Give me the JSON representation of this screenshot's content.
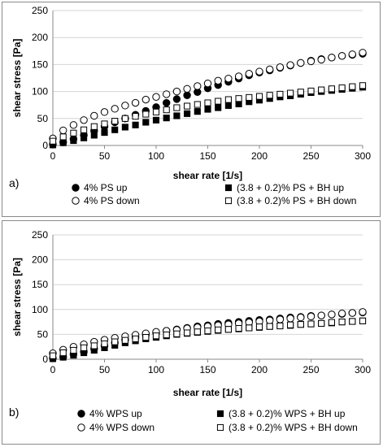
{
  "chart_data": [
    {
      "type": "scatter",
      "panel_label": "a)",
      "xlabel": "shear rate [1/s]",
      "ylabel": "shear stress [Pa]",
      "xlim": [
        0,
        300
      ],
      "ylim": [
        0,
        250
      ],
      "xticks": [
        "0",
        "50",
        "100",
        "150",
        "200",
        "250",
        "300"
      ],
      "yticks": [
        "0",
        "50",
        "100",
        "150",
        "200",
        "250"
      ],
      "grid": true,
      "legend_position": "bottom",
      "series": [
        {
          "name": "4% PS up",
          "marker": "filled-circle",
          "points": [
            [
              0,
              2
            ],
            [
              10,
              6
            ],
            [
              20,
              12
            ],
            [
              30,
              19
            ],
            [
              40,
              27
            ],
            [
              50,
              35
            ],
            [
              60,
              43
            ],
            [
              70,
              50
            ],
            [
              80,
              57
            ],
            [
              90,
              64
            ],
            [
              100,
              71
            ],
            [
              110,
              79
            ],
            [
              120,
              86
            ],
            [
              130,
              93
            ],
            [
              140,
              99
            ],
            [
              150,
              106
            ],
            [
              160,
              112
            ],
            [
              170,
              118
            ],
            [
              180,
              124
            ],
            [
              190,
              130
            ],
            [
              200,
              135
            ],
            [
              210,
              139
            ],
            [
              220,
              144
            ],
            [
              230,
              148
            ],
            [
              240,
              153
            ],
            [
              250,
              157
            ],
            [
              260,
              160
            ],
            [
              270,
              163
            ],
            [
              280,
              166
            ],
            [
              290,
              168
            ],
            [
              300,
              170
            ]
          ]
        },
        {
          "name": "4% PS down",
          "marker": "open-circle",
          "points": [
            [
              0,
              13
            ],
            [
              10,
              28
            ],
            [
              20,
              38
            ],
            [
              30,
              47
            ],
            [
              40,
              55
            ],
            [
              50,
              62
            ],
            [
              60,
              68
            ],
            [
              70,
              74
            ],
            [
              80,
              79
            ],
            [
              90,
              85
            ],
            [
              100,
              90
            ],
            [
              110,
              95
            ],
            [
              120,
              100
            ],
            [
              130,
              105
            ],
            [
              140,
              110
            ],
            [
              150,
              115
            ],
            [
              160,
              120
            ],
            [
              170,
              124
            ],
            [
              180,
              128
            ],
            [
              190,
              133
            ],
            [
              200,
              137
            ],
            [
              210,
              141
            ],
            [
              220,
              145
            ],
            [
              230,
              149
            ],
            [
              240,
              153
            ],
            [
              250,
              156
            ],
            [
              260,
              159
            ],
            [
              270,
              163
            ],
            [
              280,
              166
            ],
            [
              290,
              169
            ],
            [
              300,
              172
            ]
          ]
        },
        {
          "name": "(3.8 + 0.2)% PS + BH up",
          "marker": "filled-square",
          "points": [
            [
              0,
              1
            ],
            [
              10,
              5
            ],
            [
              20,
              9
            ],
            [
              30,
              14
            ],
            [
              40,
              19
            ],
            [
              50,
              24
            ],
            [
              60,
              29
            ],
            [
              70,
              34
            ],
            [
              80,
              38
            ],
            [
              90,
              43
            ],
            [
              100,
              47
            ],
            [
              110,
              51
            ],
            [
              120,
              55
            ],
            [
              130,
              59
            ],
            [
              140,
              63
            ],
            [
              150,
              67
            ],
            [
              160,
              70
            ],
            [
              170,
              74
            ],
            [
              180,
              77
            ],
            [
              190,
              81
            ],
            [
              200,
              84
            ],
            [
              210,
              87
            ],
            [
              220,
              90
            ],
            [
              230,
              92
            ],
            [
              240,
              95
            ],
            [
              250,
              98
            ],
            [
              260,
              100
            ],
            [
              270,
              102
            ],
            [
              280,
              104
            ],
            [
              290,
              106
            ],
            [
              300,
              108
            ]
          ]
        },
        {
          "name": "(3.8 + 0.2)% PS + BH down",
          "marker": "open-square",
          "points": [
            [
              0,
              8
            ],
            [
              10,
              16
            ],
            [
              20,
              23
            ],
            [
              30,
              29
            ],
            [
              40,
              35
            ],
            [
              50,
              40
            ],
            [
              60,
              45
            ],
            [
              70,
              50
            ],
            [
              80,
              54
            ],
            [
              90,
              58
            ],
            [
              100,
              62
            ],
            [
              110,
              66
            ],
            [
              120,
              70
            ],
            [
              130,
              73
            ],
            [
              140,
              76
            ],
            [
              150,
              79
            ],
            [
              160,
              82
            ],
            [
              170,
              85
            ],
            [
              180,
              87
            ],
            [
              190,
              89
            ],
            [
              200,
              91
            ],
            [
              210,
              93
            ],
            [
              220,
              95
            ],
            [
              230,
              97
            ],
            [
              240,
              99
            ],
            [
              250,
              101
            ],
            [
              260,
              103
            ],
            [
              270,
              105
            ],
            [
              280,
              107
            ],
            [
              290,
              109
            ],
            [
              300,
              111
            ]
          ]
        }
      ]
    },
    {
      "type": "scatter",
      "panel_label": "b)",
      "xlabel": "shear rate [1/s]",
      "ylabel": "shear stress [Pa]",
      "xlim": [
        0,
        300
      ],
      "ylim": [
        0,
        250
      ],
      "xticks": [
        "0",
        "50",
        "100",
        "150",
        "200",
        "250",
        "300"
      ],
      "yticks": [
        "0",
        "50",
        "100",
        "150",
        "200",
        "250"
      ],
      "grid": true,
      "legend_position": "bottom",
      "series": [
        {
          "name": "4% WPS up",
          "marker": "filled-circle",
          "points": [
            [
              0,
              2
            ],
            [
              10,
              5
            ],
            [
              20,
              10
            ],
            [
              30,
              15
            ],
            [
              40,
              21
            ],
            [
              50,
              27
            ],
            [
              60,
              33
            ],
            [
              70,
              39
            ],
            [
              80,
              44
            ],
            [
              90,
              49
            ],
            [
              100,
              53
            ],
            [
              110,
              57
            ],
            [
              120,
              60
            ],
            [
              130,
              63
            ],
            [
              140,
              66
            ],
            [
              150,
              68
            ],
            [
              160,
              71
            ],
            [
              170,
              73
            ],
            [
              180,
              75
            ],
            [
              190,
              77
            ],
            [
              200,
              79
            ],
            [
              210,
              80
            ],
            [
              220,
              82
            ],
            [
              230,
              84
            ],
            [
              240,
              85
            ],
            [
              250,
              87
            ],
            [
              260,
              88
            ],
            [
              270,
              90
            ],
            [
              280,
              91
            ],
            [
              290,
              93
            ],
            [
              300,
              94
            ]
          ]
        },
        {
          "name": "4% WPS down",
          "marker": "open-circle",
          "points": [
            [
              0,
              12
            ],
            [
              10,
              19
            ],
            [
              20,
              25
            ],
            [
              30,
              30
            ],
            [
              40,
              35
            ],
            [
              50,
              39
            ],
            [
              60,
              43
            ],
            [
              70,
              46
            ],
            [
              80,
              49
            ],
            [
              90,
              52
            ],
            [
              100,
              55
            ],
            [
              110,
              57
            ],
            [
              120,
              59
            ],
            [
              130,
              62
            ],
            [
              140,
              64
            ],
            [
              150,
              66
            ],
            [
              160,
              68
            ],
            [
              170,
              70
            ],
            [
              180,
              72
            ],
            [
              190,
              74
            ],
            [
              200,
              76
            ],
            [
              210,
              78
            ],
            [
              220,
              80
            ],
            [
              230,
              82
            ],
            [
              240,
              84
            ],
            [
              250,
              86
            ],
            [
              260,
              88
            ],
            [
              270,
              90
            ],
            [
              280,
              92
            ],
            [
              290,
              93
            ],
            [
              300,
              95
            ]
          ]
        },
        {
          "name": "(3.8 + 0.2)% WPS + BH up",
          "marker": "filled-square",
          "points": [
            [
              0,
              1
            ],
            [
              10,
              4
            ],
            [
              20,
              8
            ],
            [
              30,
              13
            ],
            [
              40,
              18
            ],
            [
              50,
              23
            ],
            [
              60,
              28
            ],
            [
              70,
              33
            ],
            [
              80,
              37
            ],
            [
              90,
              41
            ],
            [
              100,
              44
            ],
            [
              110,
              47
            ],
            [
              120,
              50
            ],
            [
              130,
              52
            ],
            [
              140,
              54
            ],
            [
              150,
              56
            ],
            [
              160,
              58
            ],
            [
              170,
              60
            ],
            [
              180,
              61
            ],
            [
              190,
              63
            ],
            [
              200,
              64
            ],
            [
              210,
              66
            ],
            [
              220,
              67
            ],
            [
              230,
              68
            ],
            [
              240,
              70
            ],
            [
              250,
              71
            ],
            [
              260,
              72
            ],
            [
              270,
              73
            ],
            [
              280,
              75
            ],
            [
              290,
              76
            ],
            [
              300,
              77
            ]
          ]
        },
        {
          "name": "(3.8 + 0.2)% WPS + BH down",
          "marker": "open-square",
          "points": [
            [
              0,
              7
            ],
            [
              10,
              13
            ],
            [
              20,
              18
            ],
            [
              30,
              23
            ],
            [
              40,
              27
            ],
            [
              50,
              31
            ],
            [
              60,
              35
            ],
            [
              70,
              38
            ],
            [
              80,
              41
            ],
            [
              90,
              44
            ],
            [
              100,
              47
            ],
            [
              110,
              49
            ],
            [
              120,
              51
            ],
            [
              130,
              53
            ],
            [
              140,
              55
            ],
            [
              150,
              57
            ],
            [
              160,
              59
            ],
            [
              170,
              60
            ],
            [
              180,
              62
            ],
            [
              190,
              63
            ],
            [
              200,
              65
            ],
            [
              210,
              66
            ],
            [
              220,
              67
            ],
            [
              230,
              69
            ],
            [
              240,
              70
            ],
            [
              250,
              71
            ],
            [
              260,
              72
            ],
            [
              270,
              74
            ],
            [
              280,
              75
            ],
            [
              290,
              76
            ],
            [
              300,
              77
            ]
          ]
        }
      ]
    }
  ]
}
